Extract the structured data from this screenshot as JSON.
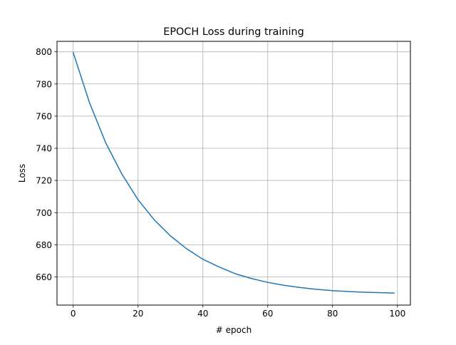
{
  "chart_data": {
    "type": "line",
    "title": "EPOCH Loss during training",
    "xlabel": "# epoch",
    "ylabel": "Loss",
    "xlim": [
      -5,
      104
    ],
    "ylim": [
      642.5,
      806.5
    ],
    "xticks": [
      0,
      20,
      40,
      60,
      80,
      100
    ],
    "yticks": [
      660,
      680,
      700,
      720,
      740,
      760,
      780,
      800
    ],
    "grid": true,
    "colors": {
      "line": "#1f77b4",
      "grid": "#b0b0b0"
    },
    "series": [
      {
        "x": [
          0,
          5,
          10,
          15,
          20,
          25,
          30,
          35,
          40,
          45,
          50,
          55,
          60,
          65,
          70,
          75,
          80,
          85,
          90,
          95,
          99
        ],
        "values": [
          799.5,
          768.5,
          743.5,
          724,
          708,
          695.5,
          685.5,
          677.5,
          671,
          666.2,
          662,
          659,
          656.6,
          654.8,
          653.4,
          652.3,
          651.5,
          650.9,
          650.5,
          650.2,
          650
        ]
      }
    ]
  }
}
